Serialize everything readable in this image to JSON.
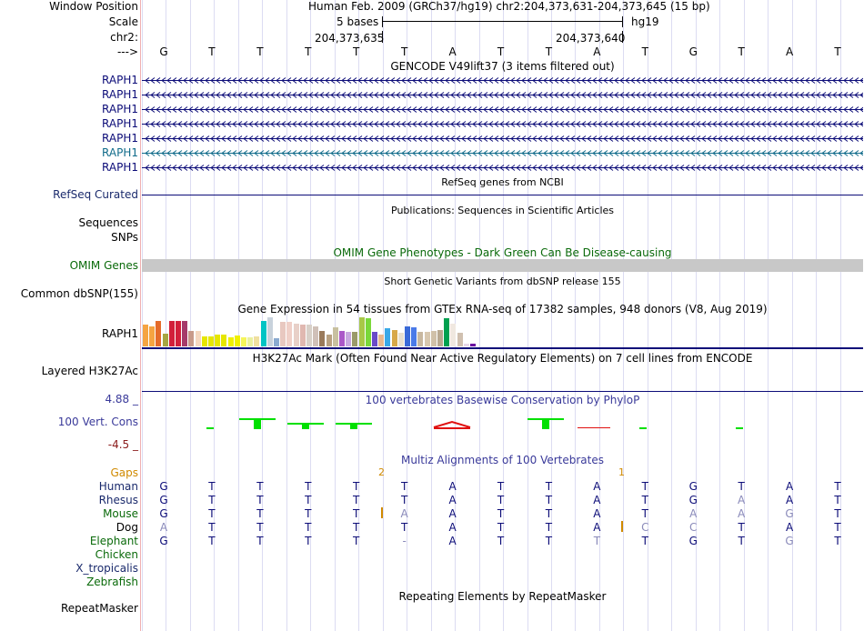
{
  "labels": {
    "window_position": "Window Position",
    "scale": "Scale",
    "chr": "chr2:",
    "arrow": "--->",
    "gencode_genes": [
      "RAPH1",
      "RAPH1",
      "RAPH1",
      "RAPH1",
      "RAPH1",
      "RAPH1",
      "RAPH1"
    ],
    "refseq": "RefSeq Curated",
    "sequences": "Sequences",
    "snps": "SNPs",
    "omim": "OMIM Genes",
    "dbsnp": "Common dbSNP(155)",
    "gtex_gene": "RAPH1",
    "h3k27ac": "Layered H3K27Ac",
    "cons_max": "4.88 _",
    "cons": "100 Vert. Cons",
    "cons_min": "-4.5 _",
    "gaps": "Gaps",
    "species": [
      "Human",
      "Rhesus",
      "Mouse",
      "Dog",
      "Elephant",
      "Chicken",
      "X_tropicalis",
      "Zebrafish"
    ],
    "repeatmasker": "RepeatMasker"
  },
  "header": {
    "position": "Human Feb. 2009 (GRCh37/hg19)   chr2:204,373,631-204,373,645 (15 bp)",
    "scale": "5 bases",
    "assembly": "hg19",
    "coord_left": "204,373,635",
    "coord_right": "204,373,640"
  },
  "bases": [
    "G",
    "T",
    "T",
    "T",
    "T",
    "T",
    "A",
    "T",
    "T",
    "A",
    "T",
    "G",
    "T",
    "A",
    "T"
  ],
  "tracks": {
    "gencode": "GENCODE V49lift37 (3 items filtered out)",
    "refseq": "RefSeq genes from NCBI",
    "publications": "Publications: Sequences in Scientific Articles",
    "omim_title": "OMIM Gene Phenotypes - Dark Green Can Be Disease-causing",
    "dbsnp_title": "Short Genetic Variants from dbSNP release 155",
    "gtex_title": "Gene Expression in 54 tissues from GTEx RNA-seq of 17382 samples, 948 donors (V8, Aug 2019)",
    "h3k27ac_title": "H3K27Ac Mark (Often Found Near Active Regulatory Elements) on 7 cell lines from ENCODE",
    "cons_title": "100 vertebrates Basewise Conservation by PhyloP",
    "multiz_title": "Multiz Alignments of 100 Vertebrates",
    "repeat_title": "Repeating Elements by RepeatMasker"
  },
  "gaps": [
    "2",
    "1"
  ],
  "alignment": {
    "Human": [
      "G",
      "T",
      "T",
      "T",
      "T",
      "T",
      "A",
      "T",
      "T",
      "A",
      "T",
      "G",
      "T",
      "A",
      "T"
    ],
    "Rhesus": [
      "G",
      "T",
      "T",
      "T",
      "T",
      "T",
      "A",
      "T",
      "T",
      "A",
      "T",
      "G",
      "A",
      "A",
      "T"
    ],
    "Mouse": [
      "G",
      "T",
      "T",
      "T",
      "T",
      "A",
      "A",
      "T",
      "T",
      "A",
      "T",
      "A",
      "A",
      "G",
      "T"
    ],
    "Dog": [
      "A",
      "T",
      "T",
      "T",
      "T",
      "T",
      "A",
      "T",
      "T",
      "A",
      "C",
      "C",
      "T",
      "A",
      "T"
    ],
    "Elephant": [
      "G",
      "T",
      "T",
      "T",
      "T",
      "-",
      "A",
      "T",
      "T",
      "T",
      "T",
      "G",
      "T",
      "G",
      "T"
    ]
  },
  "colors": {
    "gencode": "#0c0c78",
    "gencode_alt": "#106b8a",
    "label_blue": "#1a2a6c",
    "green": "#0a6a0a",
    "orange": "#d08a00",
    "cons_pos": "#00e000",
    "cons_neg": "#e01010"
  }
}
